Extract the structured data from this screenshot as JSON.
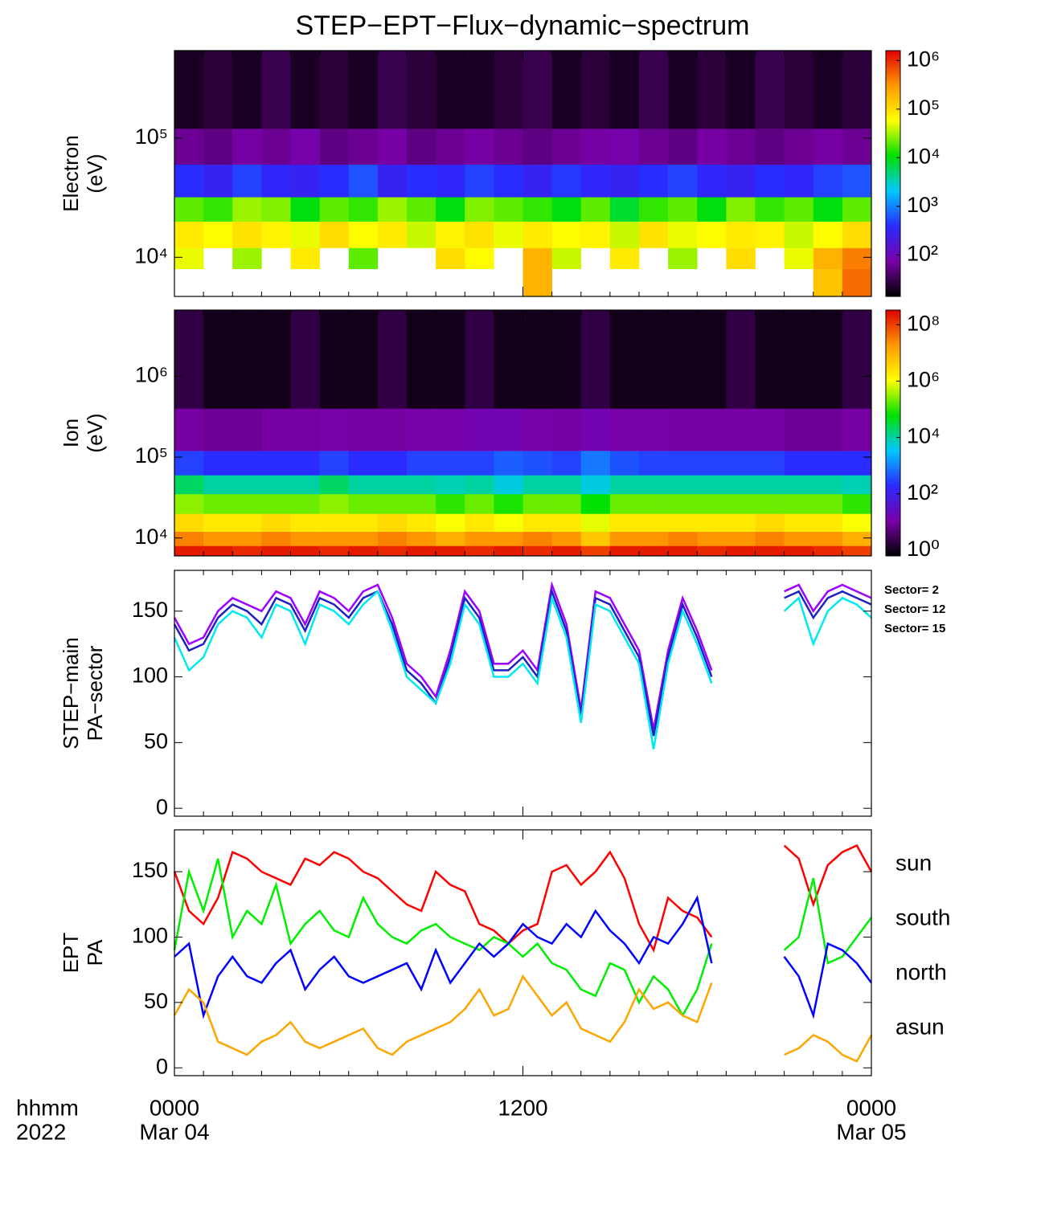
{
  "title": "STEP−EPT−Flux−dynamic−spectrum",
  "x_axis": {
    "xlim": [
      0,
      24
    ],
    "xticks": [
      {
        "value": 0,
        "label": "0000"
      },
      {
        "value": 12,
        "label": "1200"
      },
      {
        "value": 24,
        "label": "0000"
      }
    ],
    "xminor": [
      1,
      2,
      3,
      4,
      5,
      6,
      7,
      8,
      9,
      10,
      11,
      13,
      14,
      15,
      16,
      17,
      18,
      19,
      20,
      21,
      22,
      23
    ],
    "dates": [
      {
        "value": 0,
        "label": "Mar 04"
      },
      {
        "value": 24,
        "label": "Mar 05"
      }
    ],
    "row_titles": [
      "hhmm",
      "2022"
    ]
  },
  "colormap": [
    "#000000",
    "#7a00a8",
    "#2a2aff",
    "#00c8ff",
    "#00e000",
    "#ffff00",
    "#ff9900",
    "#e00000"
  ],
  "chart_data": [
    {
      "type": "heatmap",
      "ylabel": [
        "Electron",
        "(eV)"
      ],
      "ylog": true,
      "ylim": [
        4700,
        540000
      ],
      "yticks": [
        {
          "value": 10000,
          "label": "10⁴"
        },
        {
          "value": 100000,
          "label": "10⁵"
        }
      ],
      "clog": true,
      "clim": [
        14,
        1600000
      ],
      "cticks": [
        {
          "value": 100,
          "label": "10²"
        },
        {
          "value": 1000,
          "label": "10³"
        },
        {
          "value": 10000,
          "label": "10⁴"
        },
        {
          "value": 100000,
          "label": "10⁵"
        },
        {
          "value": 1000000,
          "label": "10⁶"
        }
      ],
      "x_bins": [
        0,
        1,
        2,
        3,
        4,
        5,
        6,
        7,
        8,
        9,
        10,
        11,
        12,
        13,
        14,
        15,
        16,
        17,
        18,
        19,
        20,
        21,
        22,
        23,
        24
      ],
      "y_bins": [
        4700,
        8000,
        12000,
        20000,
        32000,
        60000,
        120000,
        540000
      ],
      "z": [
        [
          null,
          null,
          null,
          null,
          null,
          null,
          null,
          null,
          null,
          null,
          null,
          null,
          200000,
          null,
          null,
          null,
          null,
          null,
          null,
          null,
          null,
          null,
          150000,
          500000
        ],
        [
          50000,
          null,
          30000,
          null,
          80000,
          null,
          20000,
          null,
          null,
          100000,
          60000,
          null,
          200000,
          40000,
          null,
          80000,
          null,
          30000,
          null,
          100000,
          null,
          50000,
          200000,
          400000
        ],
        [
          80000,
          60000,
          90000,
          70000,
          50000,
          100000,
          60000,
          80000,
          40000,
          70000,
          90000,
          50000,
          80000,
          60000,
          70000,
          40000,
          90000,
          50000,
          60000,
          80000,
          70000,
          40000,
          60000,
          100000
        ],
        [
          20000,
          15000,
          30000,
          25000,
          10000,
          20000,
          15000,
          30000,
          20000,
          10000,
          25000,
          20000,
          15000,
          10000,
          20000,
          8000,
          15000,
          20000,
          10000,
          25000,
          15000,
          20000,
          10000,
          20000
        ],
        [
          400,
          300,
          500,
          350,
          300,
          400,
          600,
          300,
          400,
          350,
          500,
          400,
          300,
          450,
          350,
          300,
          400,
          500,
          350,
          300,
          400,
          350,
          500,
          600
        ],
        [
          60,
          50,
          70,
          60,
          80,
          50,
          60,
          70,
          50,
          60,
          70,
          60,
          50,
          60,
          70,
          80,
          60,
          50,
          70,
          60,
          50,
          60,
          70,
          60
        ],
        [
          20,
          25,
          20,
          30,
          20,
          25,
          20,
          30,
          25,
          20,
          20,
          25,
          30,
          20,
          25,
          20,
          30,
          20,
          25,
          20,
          30,
          25,
          20,
          25
        ]
      ]
    },
    {
      "type": "heatmap",
      "ylabel": [
        "Ion",
        "(eV)"
      ],
      "ylog": true,
      "ylim": [
        6000,
        6600000
      ],
      "yticks": [
        {
          "value": 10000,
          "label": "10⁴"
        },
        {
          "value": 100000,
          "label": "10⁵"
        },
        {
          "value": 1000000,
          "label": "10⁶"
        }
      ],
      "clog": true,
      "clim": [
        0.63,
        330000000
      ],
      "cticks": [
        {
          "value": 1,
          "label": "10⁰"
        },
        {
          "value": 100,
          "label": "10²"
        },
        {
          "value": 10000,
          "label": "10⁴"
        },
        {
          "value": 1000000,
          "label": "10⁶"
        },
        {
          "value": 100000000,
          "label": "10⁸"
        }
      ],
      "x_bins": [
        0,
        1,
        2,
        3,
        4,
        5,
        6,
        7,
        8,
        9,
        10,
        11,
        12,
        13,
        14,
        15,
        16,
        17,
        18,
        19,
        20,
        21,
        22,
        23,
        24
      ],
      "y_bins": [
        6000,
        8000,
        12000,
        20000,
        35000,
        60000,
        120000,
        400000,
        6600000
      ],
      "z": [
        [
          200000000.0,
          200000000.0,
          150000000.0,
          200000000.0,
          200000000.0,
          150000000.0,
          200000000.0,
          150000000.0,
          200000000.0,
          200000000.0,
          150000000.0,
          200000000.0,
          150000000.0,
          200000000.0,
          100000000.0,
          200000000.0,
          200000000.0,
          200000000.0,
          150000000.0,
          200000000.0,
          200000000.0,
          200000000.0,
          150000000.0,
          100000000.0
        ],
        [
          30000000.0,
          20000000.0,
          20000000.0,
          30000000.0,
          20000000.0,
          20000000.0,
          20000000.0,
          30000000.0,
          20000000.0,
          10000000.0,
          20000000.0,
          20000000.0,
          30000000.0,
          20000000.0,
          5000000.0,
          20000000.0,
          20000000.0,
          30000000.0,
          20000000.0,
          20000000.0,
          30000000.0,
          20000000.0,
          20000000.0,
          10000000.0
        ],
        [
          3000000.0,
          2000000.0,
          2000000.0,
          3000000.0,
          2000000.0,
          2000000.0,
          2000000.0,
          3000000.0,
          2000000.0,
          1000000.0,
          2000000.0,
          1000000.0,
          2000000.0,
          2000000.0,
          800000.0,
          2000000.0,
          2000000.0,
          2000000.0,
          2000000.0,
          2000000.0,
          3000000.0,
          2000000.0,
          2000000.0,
          1000000.0
        ],
        [
          300000.0,
          200000.0,
          200000.0,
          200000.0,
          200000.0,
          300000.0,
          200000.0,
          200000.0,
          200000.0,
          100000.0,
          200000.0,
          80000.0,
          200000.0,
          200000.0,
          60000.0,
          200000.0,
          200000.0,
          200000.0,
          200000.0,
          200000.0,
          200000.0,
          200000.0,
          200000.0,
          100000.0
        ],
        [
          20000.0,
          10000.0,
          10000.0,
          10000.0,
          10000.0,
          20000.0,
          10000.0,
          10000.0,
          10000.0,
          8000.0,
          10000.0,
          5000.0,
          10000.0,
          10000.0,
          5000.0,
          10000.0,
          10000.0,
          10000.0,
          10000.0,
          10000.0,
          10000.0,
          10000.0,
          10000.0,
          8000.0
        ],
        [
          300,
          200,
          200,
          200,
          200,
          300,
          200,
          200,
          300,
          300,
          300,
          500,
          400,
          300,
          800,
          400,
          300,
          300,
          300,
          300,
          300,
          200,
          200,
          200
        ],
        [
          10,
          8,
          8,
          10,
          10,
          12,
          10,
          10,
          12,
          12,
          15,
          15,
          12,
          10,
          15,
          12,
          12,
          10,
          10,
          10,
          10,
          8,
          8,
          10
        ],
        [
          2,
          1,
          1,
          1,
          2,
          1,
          1,
          2,
          1,
          1,
          2,
          1,
          1,
          1,
          2,
          1,
          1,
          1,
          1,
          2,
          1,
          1,
          1,
          2
        ]
      ]
    },
    {
      "type": "line",
      "ylabel": [
        "STEP−main",
        "PA−sector"
      ],
      "ylim": [
        -6,
        181
      ],
      "yticks": [
        0,
        50,
        100,
        150
      ],
      "legend": "right",
      "legend_style": "compact",
      "x": [
        0,
        0.5,
        1,
        1.5,
        2,
        2.5,
        3,
        3.5,
        4,
        4.5,
        5,
        5.5,
        6,
        6.5,
        7,
        7.5,
        8,
        8.5,
        9,
        9.5,
        10,
        10.5,
        11,
        11.5,
        12,
        12.5,
        13,
        13.5,
        14,
        14.5,
        15,
        15.5,
        16,
        16.5,
        17,
        17.5,
        18,
        18.5,
        19,
        19.5,
        20,
        20.5,
        21,
        21.5,
        22,
        22.5,
        23,
        23.5,
        24
      ],
      "series": [
        {
          "name": "Sector= 2",
          "color": "#a000ff",
          "values": [
            145,
            125,
            130,
            150,
            160,
            155,
            150,
            165,
            160,
            140,
            165,
            160,
            150,
            165,
            170,
            145,
            110,
            100,
            85,
            120,
            165,
            150,
            110,
            110,
            120,
            105,
            170,
            140,
            75,
            165,
            160,
            140,
            120,
            60,
            120,
            160,
            135,
            105,
            null,
            null,
            null,
            null,
            165,
            170,
            150,
            165,
            170,
            165,
            160
          ]
        },
        {
          "name": "Sector= 12",
          "color": "#2020c0",
          "values": [
            140,
            120,
            125,
            145,
            155,
            150,
            140,
            160,
            155,
            135,
            160,
            155,
            145,
            160,
            165,
            140,
            105,
            95,
            80,
            115,
            160,
            145,
            105,
            105,
            115,
            100,
            165,
            135,
            70,
            160,
            155,
            135,
            115,
            55,
            115,
            155,
            130,
            100,
            null,
            null,
            null,
            null,
            160,
            165,
            145,
            160,
            165,
            160,
            155
          ]
        },
        {
          "name": "Sector= 15",
          "color": "#00e8f0",
          "values": [
            130,
            105,
            115,
            140,
            150,
            145,
            130,
            155,
            150,
            125,
            155,
            150,
            140,
            155,
            165,
            135,
            100,
            90,
            80,
            110,
            155,
            140,
            100,
            100,
            110,
            95,
            160,
            130,
            65,
            155,
            150,
            130,
            110,
            45,
            110,
            150,
            125,
            95,
            null,
            null,
            null,
            null,
            150,
            160,
            125,
            150,
            160,
            155,
            145
          ]
        }
      ]
    },
    {
      "type": "line",
      "ylabel": [
        "EPT",
        "PA"
      ],
      "ylim": [
        -6,
        182
      ],
      "yticks": [
        0,
        50,
        100,
        150
      ],
      "legend": "right",
      "legend_style": "large",
      "x": [
        0,
        0.5,
        1,
        1.5,
        2,
        2.5,
        3,
        3.5,
        4,
        4.5,
        5,
        5.5,
        6,
        6.5,
        7,
        7.5,
        8,
        8.5,
        9,
        9.5,
        10,
        10.5,
        11,
        11.5,
        12,
        12.5,
        13,
        13.5,
        14,
        14.5,
        15,
        15.5,
        16,
        16.5,
        17,
        17.5,
        18,
        18.5,
        19,
        19.5,
        20,
        20.5,
        21,
        21.5,
        22,
        22.5,
        23,
        23.5,
        24
      ],
      "series": [
        {
          "name": "sun",
          "color": "#ff0000",
          "values": [
            150,
            120,
            110,
            130,
            165,
            160,
            150,
            145,
            140,
            160,
            155,
            165,
            160,
            150,
            145,
            135,
            125,
            120,
            150,
            140,
            135,
            110,
            105,
            95,
            105,
            110,
            150,
            155,
            140,
            150,
            165,
            145,
            110,
            90,
            130,
            120,
            115,
            100,
            null,
            null,
            null,
            null,
            170,
            160,
            125,
            155,
            165,
            170,
            150
          ]
        },
        {
          "name": "south",
          "color": "#00ee00",
          "values": [
            90,
            150,
            120,
            160,
            100,
            120,
            110,
            140,
            95,
            110,
            120,
            105,
            100,
            130,
            110,
            100,
            95,
            105,
            110,
            100,
            95,
            90,
            100,
            95,
            85,
            95,
            80,
            75,
            60,
            55,
            80,
            75,
            50,
            70,
            60,
            40,
            60,
            95,
            null,
            null,
            null,
            null,
            90,
            100,
            145,
            80,
            85,
            100,
            115
          ]
        },
        {
          "name": "north",
          "color": "#0000ff",
          "values": [
            85,
            95,
            40,
            70,
            85,
            70,
            65,
            80,
            90,
            60,
            75,
            85,
            70,
            65,
            70,
            75,
            80,
            60,
            90,
            65,
            80,
            95,
            85,
            95,
            110,
            100,
            95,
            110,
            100,
            120,
            105,
            95,
            80,
            100,
            95,
            110,
            130,
            80,
            null,
            null,
            null,
            null,
            85,
            70,
            40,
            95,
            90,
            80,
            65
          ]
        },
        {
          "name": "asun",
          "color": "#ffa500",
          "values": [
            40,
            60,
            50,
            20,
            15,
            10,
            20,
            25,
            35,
            20,
            15,
            20,
            25,
            30,
            15,
            10,
            20,
            25,
            30,
            35,
            45,
            60,
            40,
            45,
            70,
            55,
            40,
            50,
            30,
            25,
            20,
            35,
            60,
            45,
            50,
            40,
            35,
            65,
            null,
            null,
            null,
            null,
            10,
            15,
            25,
            20,
            10,
            5,
            25
          ]
        }
      ]
    }
  ]
}
